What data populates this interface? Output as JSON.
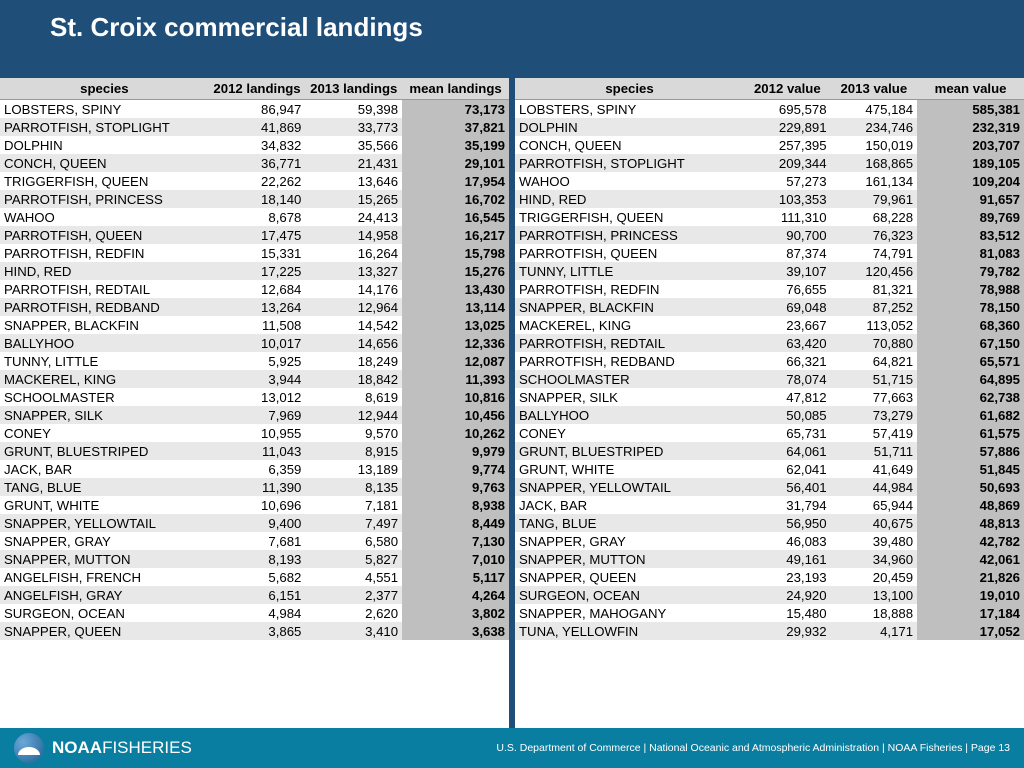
{
  "title": "St. Croix commercial landings",
  "colors": {
    "header_bg": "#1f4e79",
    "footer_bg": "#0a7ea0",
    "th_bg": "#d9d9d9",
    "mean_bg": "#bfbfbf",
    "row_even": "#e8e8e8",
    "row_odd": "#ffffff"
  },
  "left_table": {
    "headers": [
      "species",
      "2012 landings",
      "2013 landings",
      "mean landings"
    ],
    "rows": [
      [
        "LOBSTERS, SPINY",
        "86,947",
        "59,398",
        "73,173"
      ],
      [
        "PARROTFISH, STOPLIGHT",
        "41,869",
        "33,773",
        "37,821"
      ],
      [
        "DOLPHIN",
        "34,832",
        "35,566",
        "35,199"
      ],
      [
        "CONCH, QUEEN",
        "36,771",
        "21,431",
        "29,101"
      ],
      [
        "TRIGGERFISH, QUEEN",
        "22,262",
        "13,646",
        "17,954"
      ],
      [
        "PARROTFISH, PRINCESS",
        "18,140",
        "15,265",
        "16,702"
      ],
      [
        "WAHOO",
        "8,678",
        "24,413",
        "16,545"
      ],
      [
        "PARROTFISH, QUEEN",
        "17,475",
        "14,958",
        "16,217"
      ],
      [
        "PARROTFISH, REDFIN",
        "15,331",
        "16,264",
        "15,798"
      ],
      [
        "HIND, RED",
        "17,225",
        "13,327",
        "15,276"
      ],
      [
        "PARROTFISH, REDTAIL",
        "12,684",
        "14,176",
        "13,430"
      ],
      [
        "PARROTFISH, REDBAND",
        "13,264",
        "12,964",
        "13,114"
      ],
      [
        "SNAPPER, BLACKFIN",
        "11,508",
        "14,542",
        "13,025"
      ],
      [
        "BALLYHOO",
        "10,017",
        "14,656",
        "12,336"
      ],
      [
        "TUNNY, LITTLE",
        "5,925",
        "18,249",
        "12,087"
      ],
      [
        "MACKEREL, KING",
        "3,944",
        "18,842",
        "11,393"
      ],
      [
        "SCHOOLMASTER",
        "13,012",
        "8,619",
        "10,816"
      ],
      [
        "SNAPPER, SILK",
        "7,969",
        "12,944",
        "10,456"
      ],
      [
        "CONEY",
        "10,955",
        "9,570",
        "10,262"
      ],
      [
        "GRUNT, BLUESTRIPED",
        "11,043",
        "8,915",
        "9,979"
      ],
      [
        "JACK, BAR",
        "6,359",
        "13,189",
        "9,774"
      ],
      [
        "TANG, BLUE",
        "11,390",
        "8,135",
        "9,763"
      ],
      [
        "GRUNT, WHITE",
        "10,696",
        "7,181",
        "8,938"
      ],
      [
        "SNAPPER, YELLOWTAIL",
        "9,400",
        "7,497",
        "8,449"
      ],
      [
        "SNAPPER, GRAY",
        "7,681",
        "6,580",
        "7,130"
      ],
      [
        "SNAPPER, MUTTON",
        "8,193",
        "5,827",
        "7,010"
      ],
      [
        "ANGELFISH, FRENCH",
        "5,682",
        "4,551",
        "5,117"
      ],
      [
        "ANGELFISH, GRAY",
        "6,151",
        "2,377",
        "4,264"
      ],
      [
        "SURGEON, OCEAN",
        "4,984",
        "2,620",
        "3,802"
      ],
      [
        "SNAPPER, QUEEN",
        "3,865",
        "3,410",
        "3,638"
      ]
    ]
  },
  "right_table": {
    "headers": [
      "species",
      "2012 value",
      "2013 value",
      "mean value"
    ],
    "rows": [
      [
        "LOBSTERS, SPINY",
        "695,578",
        "475,184",
        "585,381"
      ],
      [
        "DOLPHIN",
        "229,891",
        "234,746",
        "232,319"
      ],
      [
        "CONCH, QUEEN",
        "257,395",
        "150,019",
        "203,707"
      ],
      [
        "PARROTFISH, STOPLIGHT",
        "209,344",
        "168,865",
        "189,105"
      ],
      [
        "WAHOO",
        "57,273",
        "161,134",
        "109,204"
      ],
      [
        "HIND, RED",
        "103,353",
        "79,961",
        "91,657"
      ],
      [
        "TRIGGERFISH, QUEEN",
        "111,310",
        "68,228",
        "89,769"
      ],
      [
        "PARROTFISH, PRINCESS",
        "90,700",
        "76,323",
        "83,512"
      ],
      [
        "PARROTFISH, QUEEN",
        "87,374",
        "74,791",
        "81,083"
      ],
      [
        "TUNNY, LITTLE",
        "39,107",
        "120,456",
        "79,782"
      ],
      [
        "PARROTFISH, REDFIN",
        "76,655",
        "81,321",
        "78,988"
      ],
      [
        "SNAPPER, BLACKFIN",
        "69,048",
        "87,252",
        "78,150"
      ],
      [
        "MACKEREL, KING",
        "23,667",
        "113,052",
        "68,360"
      ],
      [
        "PARROTFISH, REDTAIL",
        "63,420",
        "70,880",
        "67,150"
      ],
      [
        "PARROTFISH, REDBAND",
        "66,321",
        "64,821",
        "65,571"
      ],
      [
        "SCHOOLMASTER",
        "78,074",
        "51,715",
        "64,895"
      ],
      [
        "SNAPPER, SILK",
        "47,812",
        "77,663",
        "62,738"
      ],
      [
        "BALLYHOO",
        "50,085",
        "73,279",
        "61,682"
      ],
      [
        "CONEY",
        "65,731",
        "57,419",
        "61,575"
      ],
      [
        "GRUNT, BLUESTRIPED",
        "64,061",
        "51,711",
        "57,886"
      ],
      [
        "GRUNT, WHITE",
        "62,041",
        "41,649",
        "51,845"
      ],
      [
        "SNAPPER, YELLOWTAIL",
        "56,401",
        "44,984",
        "50,693"
      ],
      [
        "JACK, BAR",
        "31,794",
        "65,944",
        "48,869"
      ],
      [
        "TANG, BLUE",
        "56,950",
        "40,675",
        "48,813"
      ],
      [
        "SNAPPER, GRAY",
        "46,083",
        "39,480",
        "42,782"
      ],
      [
        "SNAPPER, MUTTON",
        "49,161",
        "34,960",
        "42,061"
      ],
      [
        "SNAPPER, QUEEN",
        "23,193",
        "20,459",
        "21,826"
      ],
      [
        "SURGEON, OCEAN",
        "24,920",
        "13,100",
        "19,010"
      ],
      [
        "SNAPPER, MAHOGANY",
        "15,480",
        "18,888",
        "17,184"
      ],
      [
        "TUNA, YELLOWFIN",
        "29,932",
        "4,171",
        "17,052"
      ]
    ]
  },
  "footer": {
    "logo_main": "NOAA",
    "logo_sub": "FISHERIES",
    "right_text": "U.S. Department of Commerce   |   National Oceanic and Atmospheric Administration   |   NOAA Fisheries   |   Page 13"
  }
}
